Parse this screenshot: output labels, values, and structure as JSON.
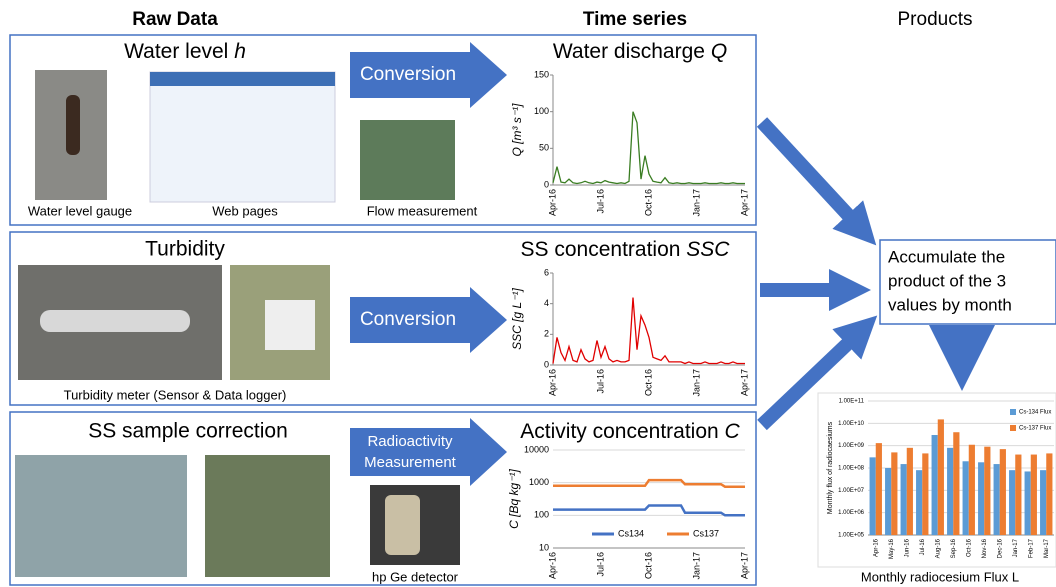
{
  "headers": {
    "raw": "Raw Data",
    "time": "Time series",
    "products": "Products"
  },
  "panels": [
    {
      "title": "Water level",
      "symbol": "h",
      "captions": [
        "Water level gauge",
        "Web pages",
        "Flow measurement"
      ],
      "arrow": [
        "Conversion"
      ]
    },
    {
      "title": "Turbidity",
      "captions": [
        "Turbidity meter (Sensor & Data logger)"
      ],
      "arrow": [
        "Conversion"
      ]
    },
    {
      "title": "SS sample correction",
      "captions": [
        "hp Ge detector"
      ],
      "arrow": [
        "Radioactivity",
        "Measurement"
      ]
    }
  ],
  "accumulate": [
    "Accumulate the",
    "product of the 3",
    "values by month"
  ],
  "flux_caption": "Monthly radiocesium Flux L",
  "charts": {
    "q": {
      "type": "line",
      "title": "Water discharge",
      "symbol": "Q",
      "ylabel": "Q [m³ s⁻¹]",
      "categories": [
        "Apr-16",
        null,
        null,
        null,
        null,
        null,
        null,
        null,
        null,
        null,
        null,
        null,
        "Jul-16",
        null,
        null,
        null,
        null,
        null,
        null,
        null,
        null,
        null,
        null,
        null,
        "Oct-16",
        null,
        null,
        null,
        null,
        null,
        null,
        null,
        null,
        null,
        null,
        null,
        "Jan-17",
        null,
        null,
        null,
        null,
        null,
        null,
        null,
        null,
        null,
        null,
        null,
        "Apr-17"
      ],
      "ylim": [
        0,
        150
      ],
      "yticks": [
        0,
        50,
        100,
        150
      ],
      "grid": false,
      "series": [
        {
          "color": "#3a7d22",
          "values": [
            3,
            25,
            4,
            3,
            8,
            3,
            2,
            3,
            5,
            3,
            2,
            4,
            3,
            6,
            4,
            3,
            2,
            3,
            2,
            5,
            100,
            85,
            8,
            40,
            15,
            5,
            4,
            3,
            10,
            3,
            2,
            3,
            2,
            2,
            3,
            2,
            2,
            2,
            3,
            2,
            2,
            2,
            3,
            2,
            2,
            3,
            2,
            2,
            2
          ]
        }
      ]
    },
    "ssc": {
      "type": "line",
      "title": "SS concentration",
      "symbol": "SSC",
      "ylabel": "SSC [g L⁻¹]",
      "categories": [
        "Apr-16",
        null,
        null,
        null,
        null,
        null,
        null,
        null,
        null,
        null,
        null,
        null,
        "Jul-16",
        null,
        null,
        null,
        null,
        null,
        null,
        null,
        null,
        null,
        null,
        null,
        "Oct-16",
        null,
        null,
        null,
        null,
        null,
        null,
        null,
        null,
        null,
        null,
        null,
        "Jan-17",
        null,
        null,
        null,
        null,
        null,
        null,
        null,
        null,
        null,
        null,
        null,
        "Apr-17"
      ],
      "ylim": [
        0,
        6
      ],
      "yticks": [
        0,
        2,
        4,
        6
      ],
      "grid": false,
      "series": [
        {
          "color": "#e00000",
          "values": [
            0.1,
            1.8,
            0.8,
            0.3,
            1.2,
            0.3,
            0.2,
            1.0,
            0.4,
            0.2,
            0.3,
            1.6,
            0.5,
            1.2,
            0.4,
            0.2,
            0.3,
            0.2,
            0.2,
            0.3,
            4.4,
            1.0,
            3.2,
            2.6,
            1.8,
            0.5,
            0.4,
            0.3,
            0.6,
            0.2,
            0.2,
            0.2,
            0.2,
            0.1,
            0.2,
            0.1,
            0.1,
            0.1,
            0.2,
            0.1,
            0.1,
            0.1,
            0.2,
            0.1,
            0.1,
            0.2,
            0.1,
            0.1,
            0.1
          ]
        }
      ]
    },
    "act": {
      "type": "line",
      "title": "Activity concentration",
      "symbol": "C",
      "ylabel": "C [Bq kg⁻¹]",
      "categories": [
        "Apr-16",
        null,
        null,
        null,
        null,
        null,
        null,
        null,
        null,
        null,
        null,
        null,
        "Jul-16",
        null,
        null,
        null,
        null,
        null,
        null,
        null,
        null,
        null,
        null,
        null,
        "Oct-16",
        null,
        null,
        null,
        null,
        null,
        null,
        null,
        null,
        null,
        null,
        null,
        "Jan-17",
        null,
        null,
        null,
        null,
        null,
        null,
        null,
        null,
        null,
        null,
        null,
        "Apr-17"
      ],
      "ylim": [
        10,
        10000
      ],
      "yticks": [
        10,
        100,
        1000,
        10000
      ],
      "log": true,
      "grid": true,
      "series": [
        {
          "name": "Cs134",
          "color": "#4472c4",
          "values": [
            150,
            150,
            150,
            150,
            150,
            150,
            150,
            150,
            150,
            150,
            150,
            150,
            150,
            150,
            150,
            150,
            150,
            150,
            150,
            150,
            150,
            150,
            150,
            150,
            200,
            200,
            200,
            200,
            200,
            200,
            200,
            200,
            200,
            120,
            120,
            120,
            120,
            120,
            120,
            120,
            120,
            120,
            120,
            100,
            100,
            100,
            100,
            100,
            100
          ]
        },
        {
          "name": "Cs137",
          "color": "#ed7d31",
          "values": [
            800,
            800,
            800,
            800,
            800,
            800,
            800,
            800,
            800,
            800,
            800,
            800,
            800,
            800,
            800,
            800,
            800,
            800,
            800,
            800,
            800,
            800,
            800,
            800,
            1200,
            1200,
            1200,
            1200,
            1200,
            1200,
            1200,
            1200,
            1200,
            900,
            900,
            900,
            900,
            900,
            900,
            900,
            900,
            900,
            900,
            750,
            750,
            750,
            750,
            750,
            750
          ]
        }
      ]
    },
    "flux": {
      "type": "bar",
      "ylabel": "Monthly flux of radiocaesiums",
      "log": true,
      "grid": true,
      "categories": [
        "Apr-16",
        "May-16",
        "Jun-16",
        "Jul-16",
        "Aug-16",
        "Sep-16",
        "Oct-16",
        "Nov-16",
        "Dec-16",
        "Jan-17",
        "Feb-17",
        "Mar-17"
      ],
      "ylim": [
        100000,
        100000000000
      ],
      "yticks": [
        {
          "value": 100000,
          "label": "1.00E+05"
        },
        {
          "value": 1000000,
          "label": "1.00E+06"
        },
        {
          "value": 10000000,
          "label": "1.00E+07"
        },
        {
          "value": 100000000,
          "label": "1.00E+08"
        },
        {
          "value": 1000000000,
          "label": "1.00E+09"
        },
        {
          "value": 10000000000,
          "label": "1.00E+10"
        },
        {
          "value": 100000000000,
          "label": "1.00E+11"
        }
      ],
      "series": [
        {
          "name": "Cs-134 Flux",
          "color": "#5b9bd5",
          "values": [
            300000000,
            100000000,
            150000000,
            80000000,
            3000000000,
            800000000,
            200000000,
            180000000,
            150000000,
            80000000,
            70000000,
            80000000
          ]
        },
        {
          "name": "Cs-137 Flux",
          "color": "#ed7d31",
          "values": [
            1300000000,
            500000000,
            800000000,
            450000000,
            15000000000,
            4000000000,
            1100000000,
            900000000,
            700000000,
            400000000,
            400000000,
            450000000
          ]
        }
      ]
    }
  }
}
